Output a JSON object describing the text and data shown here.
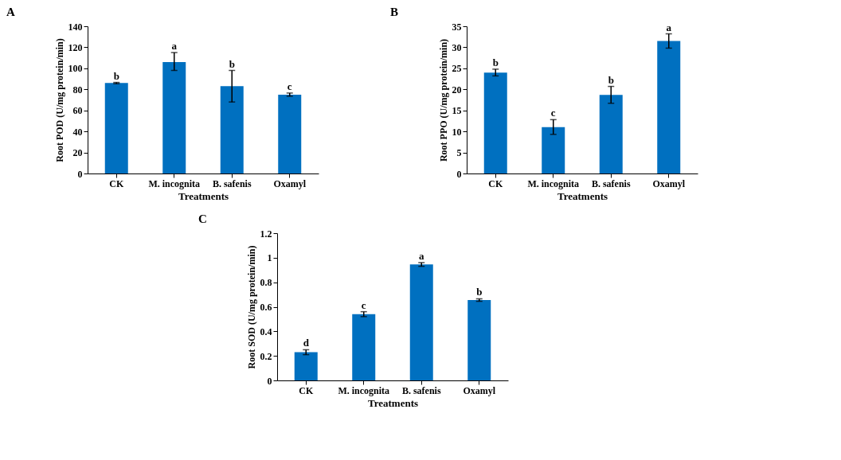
{
  "chart_data": [
    {
      "type": "bar",
      "title": "A",
      "xlabel": "Treatments",
      "ylabel": "Root POD (U/mg protein/min)",
      "categories": [
        "CK",
        "M. incognita",
        "B. safenis",
        "Oxamyl"
      ],
      "values": [
        86,
        106,
        83,
        75
      ],
      "color": "#0070c0",
      "errors": [
        [
          85.4,
          86.6
        ],
        [
          98,
          115
        ],
        [
          68,
          98
        ],
        [
          73.5,
          76.5
        ]
      ],
      "ylim": [
        0,
        140
      ],
      "yticks": [
        0,
        20,
        40,
        60,
        80,
        100,
        120,
        140
      ],
      "grid": false,
      "annotations": [
        {
          "text": "b",
          "x": "CK",
          "y": 86.6
        },
        {
          "text": "a",
          "x": "M. incognita",
          "y": 115
        },
        {
          "text": "b",
          "x": "B. safenis",
          "y": 98
        },
        {
          "text": "c",
          "x": "Oxamyl",
          "y": 76.5
        }
      ]
    },
    {
      "type": "bar",
      "title": "B",
      "xlabel": "Treatments",
      "ylabel": "Root PPO (U/mg protein/min)",
      "categories": [
        "CK",
        "M. incognita",
        "B. safenis",
        "Oxamyl"
      ],
      "values": [
        24,
        11,
        18.7,
        31.5
      ],
      "color": "#0070c0",
      "errors": [
        [
          23.2,
          24.8
        ],
        [
          9.3,
          12.8
        ],
        [
          16.7,
          20.7
        ],
        [
          29.8,
          33.2
        ]
      ],
      "ylim": [
        0,
        35
      ],
      "yticks": [
        0,
        5,
        10,
        15,
        20,
        25,
        30,
        35
      ],
      "grid": false,
      "annotations": [
        {
          "text": "b",
          "x": "CK",
          "y": 24.8
        },
        {
          "text": "c",
          "x": "M. incognita",
          "y": 12.8
        },
        {
          "text": "b",
          "x": "B. safenis",
          "y": 20.7
        },
        {
          "text": "a",
          "x": "Oxamyl",
          "y": 33.2
        }
      ]
    },
    {
      "type": "bar",
      "title": "C",
      "xlabel": "Treatments",
      "ylabel": "Root SOD (U/mg protein/min)",
      "categories": [
        "CK",
        "M. incognita",
        "B. safenis",
        "Oxamyl"
      ],
      "values": [
        0.23,
        0.54,
        0.945,
        0.655
      ],
      "color": "#0070c0",
      "errors": [
        [
          0.21,
          0.25
        ],
        [
          0.52,
          0.56
        ],
        [
          0.93,
          0.96
        ],
        [
          0.645,
          0.665
        ]
      ],
      "ylim": [
        0,
        1.2
      ],
      "yticks": [
        0,
        0.2,
        0.4,
        0.6,
        0.8,
        1,
        1.2
      ],
      "grid": false,
      "annotations": [
        {
          "text": "d",
          "x": "CK",
          "y": 0.25
        },
        {
          "text": "c",
          "x": "M. incognita",
          "y": 0.56
        },
        {
          "text": "a",
          "x": "B. safenis",
          "y": 0.96
        },
        {
          "text": "b",
          "x": "Oxamyl",
          "y": 0.665
        }
      ]
    }
  ]
}
